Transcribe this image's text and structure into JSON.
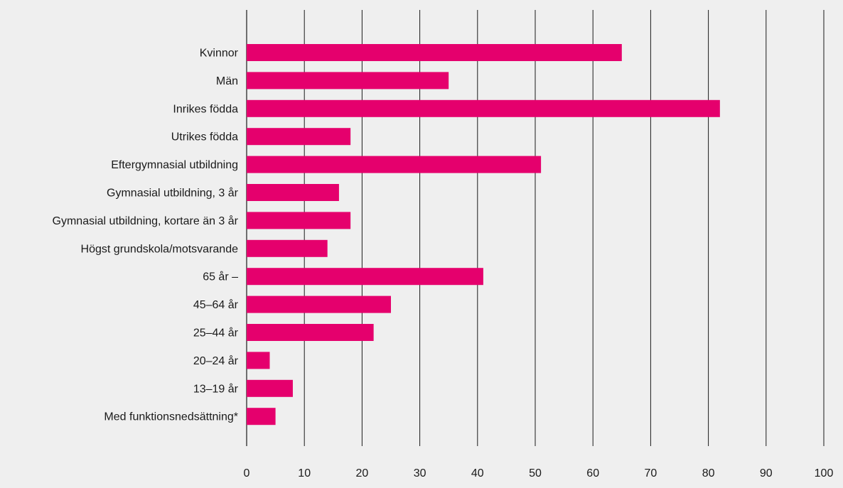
{
  "chart_data": {
    "type": "bar",
    "orientation": "horizontal",
    "categories": [
      "Kvinnor",
      "Män",
      "Inrikes födda",
      "Utrikes födda",
      "Eftergymnasial utbildning",
      "Gymnasial utbildning, 3 år",
      "Gymnasial utbildning, kortare än 3 år",
      "Högst grundskola/motsvarande",
      "65 år –",
      "45–64 år",
      "25–44 år",
      "20–24 år",
      "13–19 år",
      "Med funktionsnedsättning*"
    ],
    "values": [
      65,
      35,
      82,
      18,
      51,
      16,
      18,
      14,
      41,
      25,
      22,
      4,
      8,
      5
    ],
    "xlim": [
      0,
      100
    ],
    "x_ticks": [
      "0",
      "10",
      "20",
      "30",
      "40",
      "50",
      "60",
      "70",
      "80",
      "90",
      "100"
    ],
    "grid": true,
    "title": "",
    "xlabel": "",
    "ylabel": "",
    "colors": {
      "bar": "#e5006d",
      "grid": "#1a1a1a",
      "background": "#efefef",
      "text": "#1a1a1a"
    }
  }
}
